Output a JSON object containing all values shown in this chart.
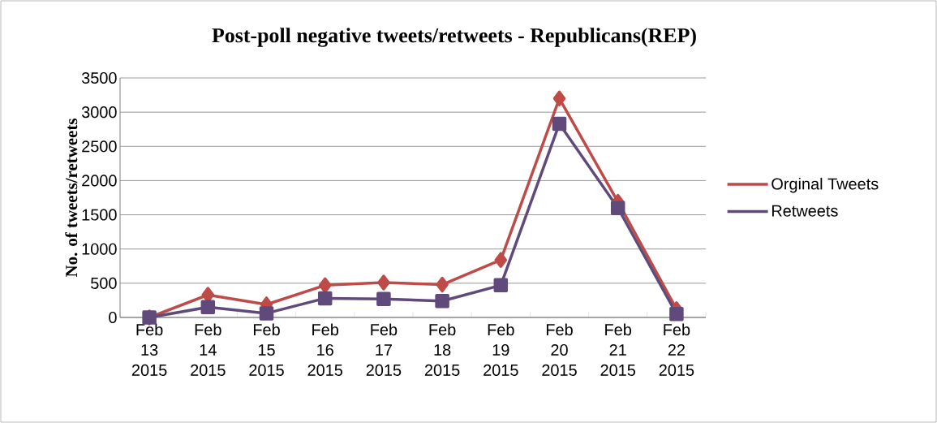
{
  "chart_data": {
    "type": "line",
    "title": "Post-poll negative tweets/retweets - Republicans(REP)",
    "ylabel": "No. of tweets/retweets",
    "categories": [
      "Feb 13 2015",
      "Feb 14 2015",
      "Feb 15 2015",
      "Feb 16 2015",
      "Feb 17 2015",
      "Feb 18 2015",
      "Feb 19 2015",
      "Feb 20 2015",
      "Feb 21 2015",
      "Feb 22 2015"
    ],
    "series": [
      {
        "name": "Orginal Tweets",
        "color": "#be4b48",
        "marker": "diamond",
        "values": [
          0,
          330,
          190,
          470,
          510,
          480,
          840,
          3200,
          1690,
          120
        ]
      },
      {
        "name": "Retweets",
        "color": "#604a7b",
        "marker": "square",
        "values": [
          0,
          150,
          60,
          280,
          270,
          240,
          470,
          2830,
          1600,
          50
        ]
      }
    ],
    "ylim": [
      0,
      3500
    ],
    "yticks": [
      0,
      500,
      1000,
      1500,
      2000,
      2500,
      3000,
      3500
    ],
    "grid": "y",
    "legend": "right",
    "line_style": "solid"
  }
}
